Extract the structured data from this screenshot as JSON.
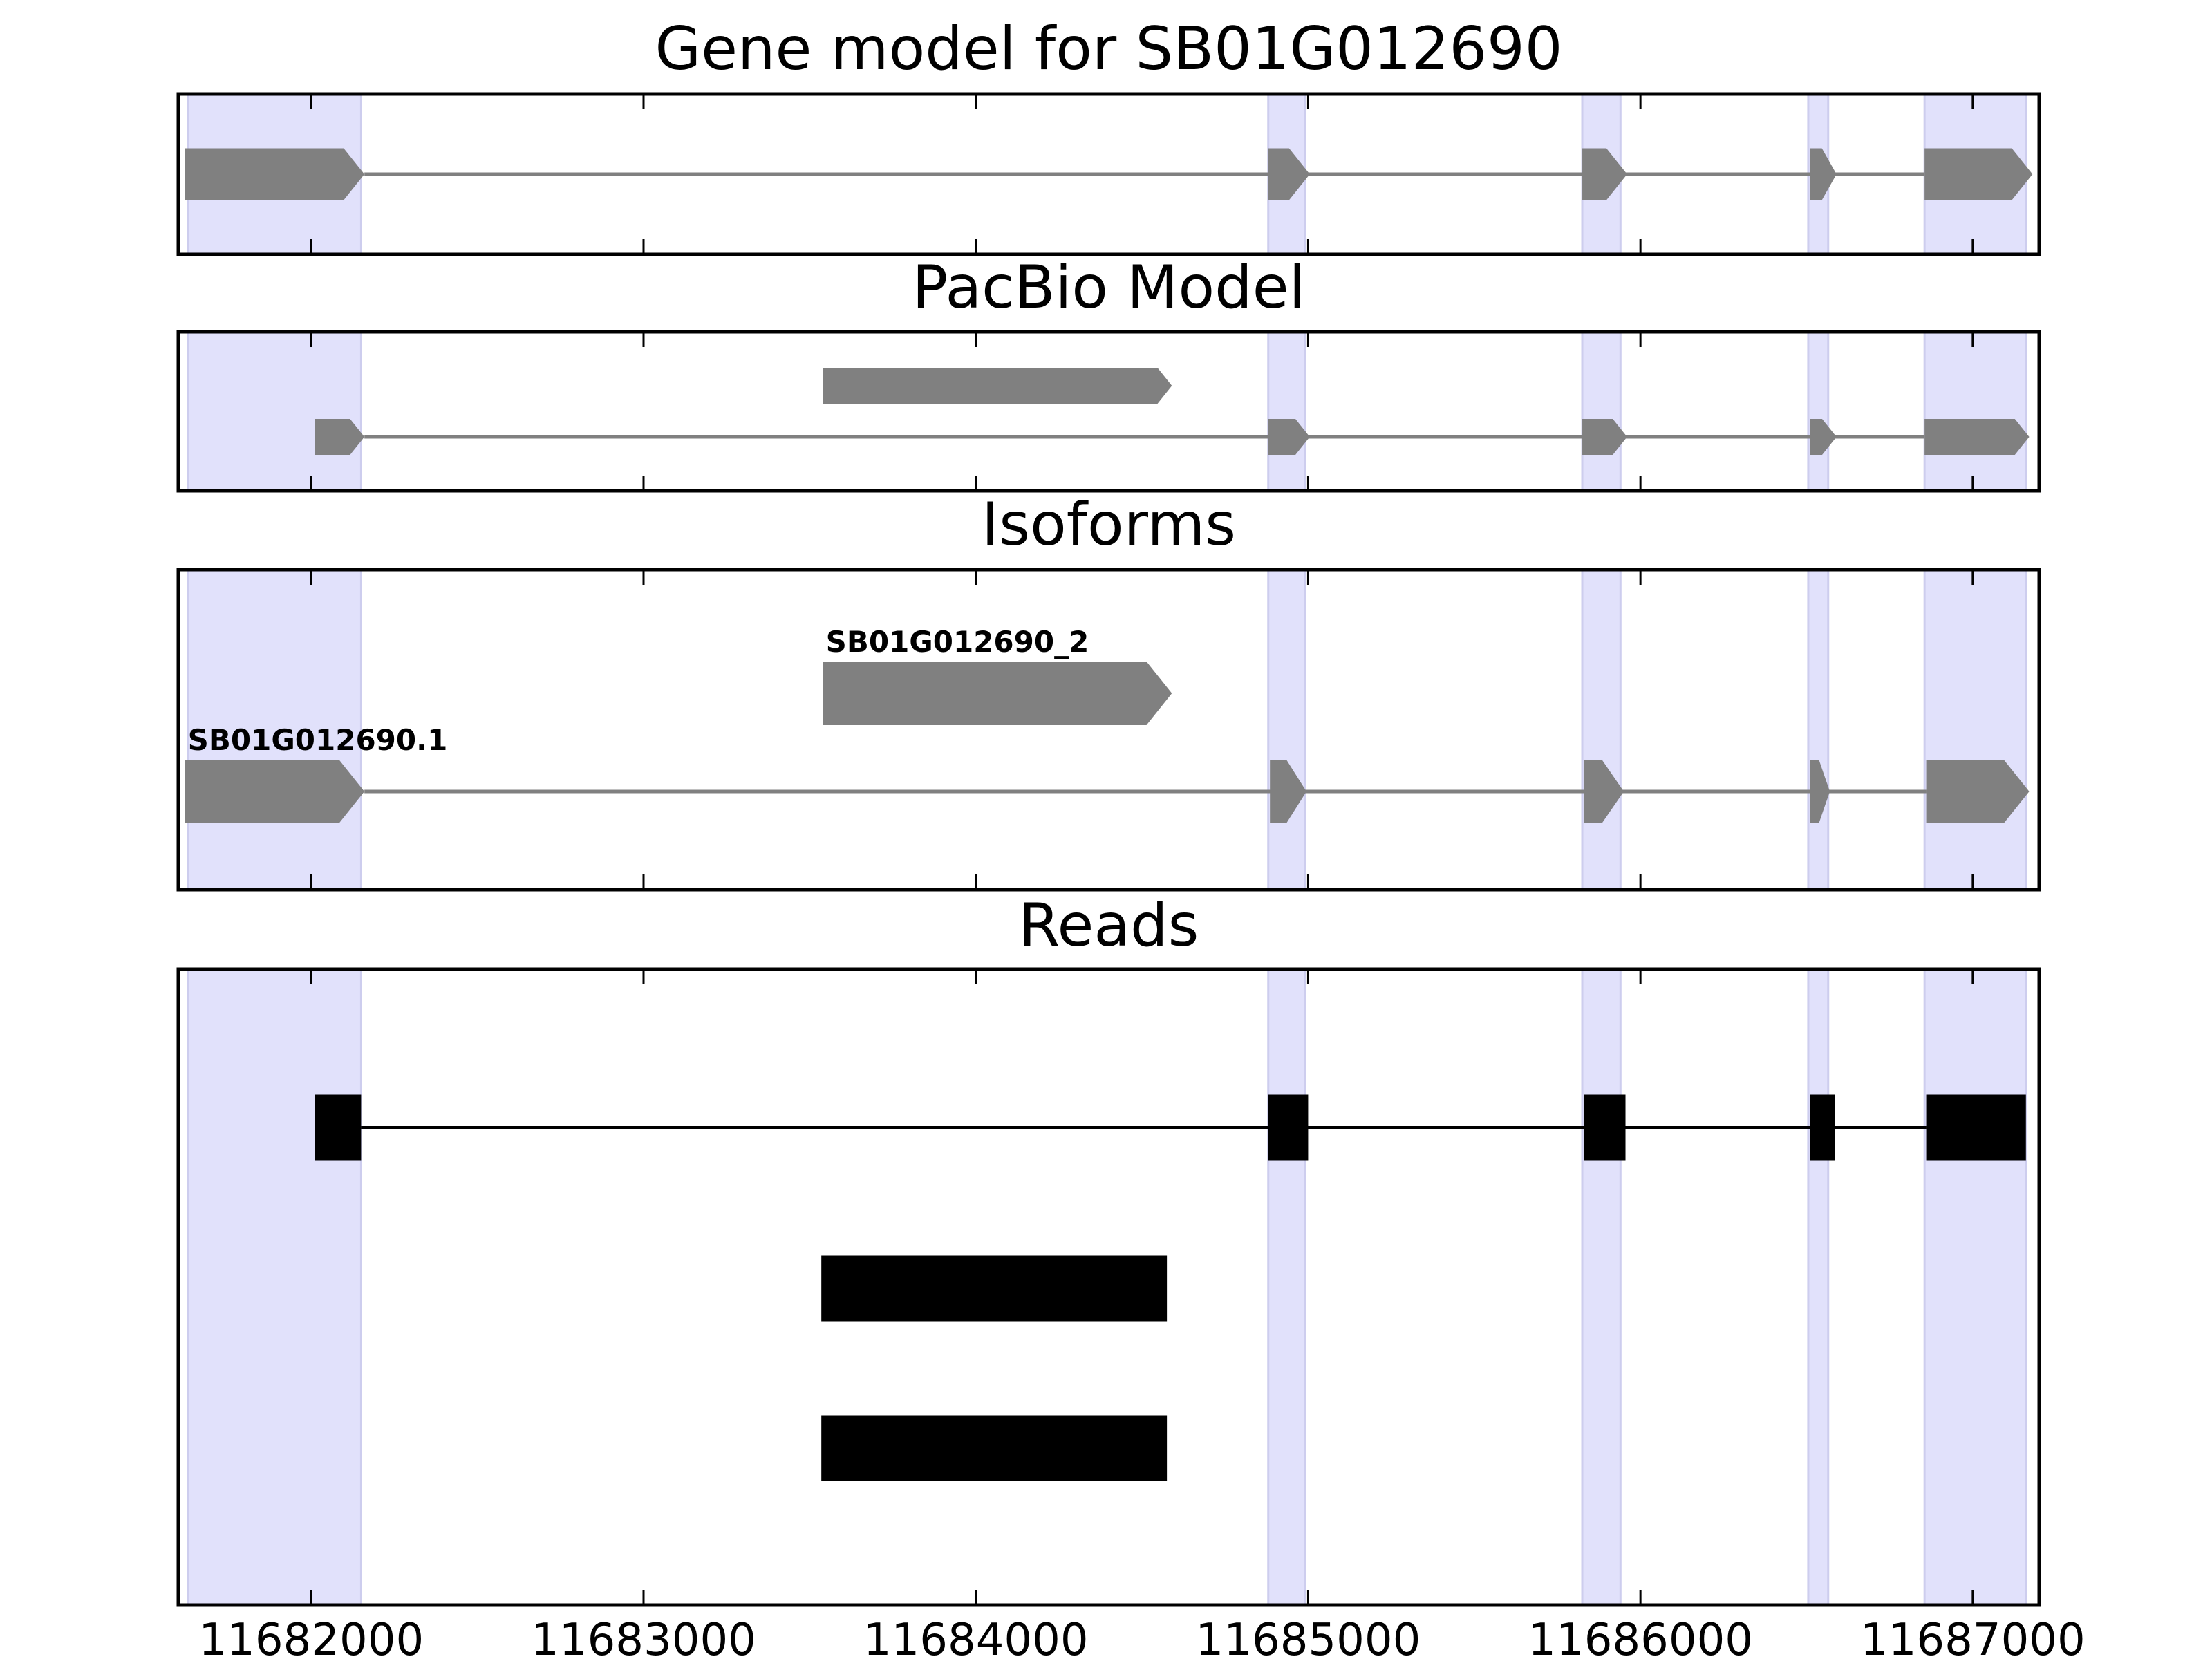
{
  "chart_data": [
    {
      "type": "gene_track",
      "title": "Gene model for SB01G012690",
      "xlim": [
        11681600,
        11687200
      ],
      "exon_regions": [
        [
          11681630,
          11682150
        ],
        [
          11684880,
          11684990
        ],
        [
          11685825,
          11685940
        ],
        [
          11686505,
          11686565
        ],
        [
          11686855,
          11687160
        ]
      ],
      "transcripts": [
        {
          "label": "",
          "color": "#808080",
          "row": 0,
          "exons": [
            [
              11681620,
              11682160
            ],
            [
              11684880,
              11685005
            ],
            [
              11685825,
              11685960
            ],
            [
              11686510,
              11686590
            ],
            [
              11686855,
              11687180
            ]
          ]
        }
      ]
    },
    {
      "type": "gene_track",
      "title": "PacBio Model",
      "xlim": [
        11681600,
        11687200
      ],
      "exon_regions": [
        [
          11681630,
          11682150
        ],
        [
          11684880,
          11684990
        ],
        [
          11685825,
          11685940
        ],
        [
          11686505,
          11686565
        ],
        [
          11686855,
          11687160
        ]
      ],
      "transcripts": [
        {
          "label": "",
          "color": "#808080",
          "row": 0,
          "exons": [
            [
              11683540,
              11684590
            ]
          ]
        },
        {
          "label": "",
          "color": "#808080",
          "row": 1,
          "exons": [
            [
              11682010,
              11682160
            ],
            [
              11684880,
              11685005
            ],
            [
              11685825,
              11685960
            ],
            [
              11686510,
              11686590
            ],
            [
              11686855,
              11687170
            ]
          ]
        }
      ]
    },
    {
      "type": "gene_track",
      "title": "Isoforms",
      "xlim": [
        11681600,
        11687200
      ],
      "exon_regions": [
        [
          11681630,
          11682150
        ],
        [
          11684880,
          11684990
        ],
        [
          11685825,
          11685940
        ],
        [
          11686505,
          11686565
        ],
        [
          11686855,
          11687160
        ]
      ],
      "transcripts": [
        {
          "label": "SB01G012690_2",
          "color": "#808080",
          "row": 0,
          "exons": [
            [
              11683540,
              11684590
            ]
          ]
        },
        {
          "label": "SB01G012690.1",
          "color": "#808080",
          "row": 1,
          "exons": [
            [
              11681620,
              11682160
            ],
            [
              11684885,
              11684995
            ],
            [
              11685830,
              11685950
            ],
            [
              11686510,
              11686570
            ],
            [
              11686860,
              11687170
            ]
          ]
        }
      ]
    },
    {
      "type": "reads_track",
      "title": "Reads",
      "xlim": [
        11681600,
        11687200
      ],
      "x_ticks": [
        11682000,
        11683000,
        11684000,
        11685000,
        11686000,
        11687000
      ],
      "exon_regions": [
        [
          11681630,
          11682150
        ],
        [
          11684880,
          11684990
        ],
        [
          11685825,
          11685940
        ],
        [
          11686505,
          11686565
        ],
        [
          11686855,
          11687160
        ]
      ],
      "reads": [
        {
          "color": "#000000",
          "row": 0,
          "exons": [
            [
              11682010,
              11682150
            ],
            [
              11684880,
              11685000
            ],
            [
              11685830,
              11685955
            ],
            [
              11686510,
              11686585
            ],
            [
              11686860,
              11687160
            ]
          ]
        },
        {
          "color": "#000000",
          "row": 1,
          "exons": [
            [
              11683535,
              11684575
            ]
          ]
        },
        {
          "color": "#000000",
          "row": 2,
          "exons": [
            [
              11683535,
              11684575
            ]
          ]
        }
      ]
    }
  ],
  "colors": {
    "exon_region_fill": "#e1e1fb",
    "exon_region_edge": "#cdcdee",
    "model_fill": "#808080",
    "read_fill": "#000000",
    "axis": "#000000"
  }
}
